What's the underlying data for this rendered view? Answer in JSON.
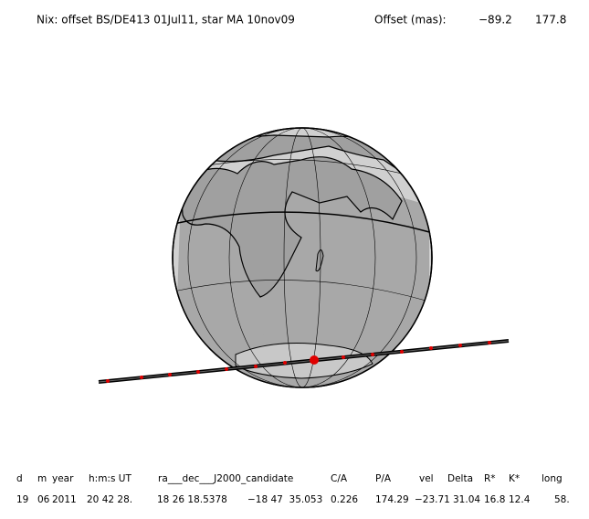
{
  "header": {
    "title": "Nix: offset BS/DE413 01Jul11, star MA 10nov09",
    "offset_label": "Offset (mas):",
    "offset_x": "−89.2",
    "offset_y": "177.8"
  },
  "table": {
    "columns": [
      "d",
      "m",
      "year",
      "h:m:s UT",
      "ra___dec___J2000_candidate",
      "C/A",
      "P/A",
      "vel",
      "Delta",
      "R*",
      "K*",
      "long"
    ],
    "row": [
      "19",
      "06",
      "2011",
      "20 42 28.",
      "18 26 18.5378",
      "−18 47  35.053",
      "0.226",
      "174.29",
      "−23.71",
      "31.04",
      "16.8",
      "12.4",
      "58."
    ]
  }
}
